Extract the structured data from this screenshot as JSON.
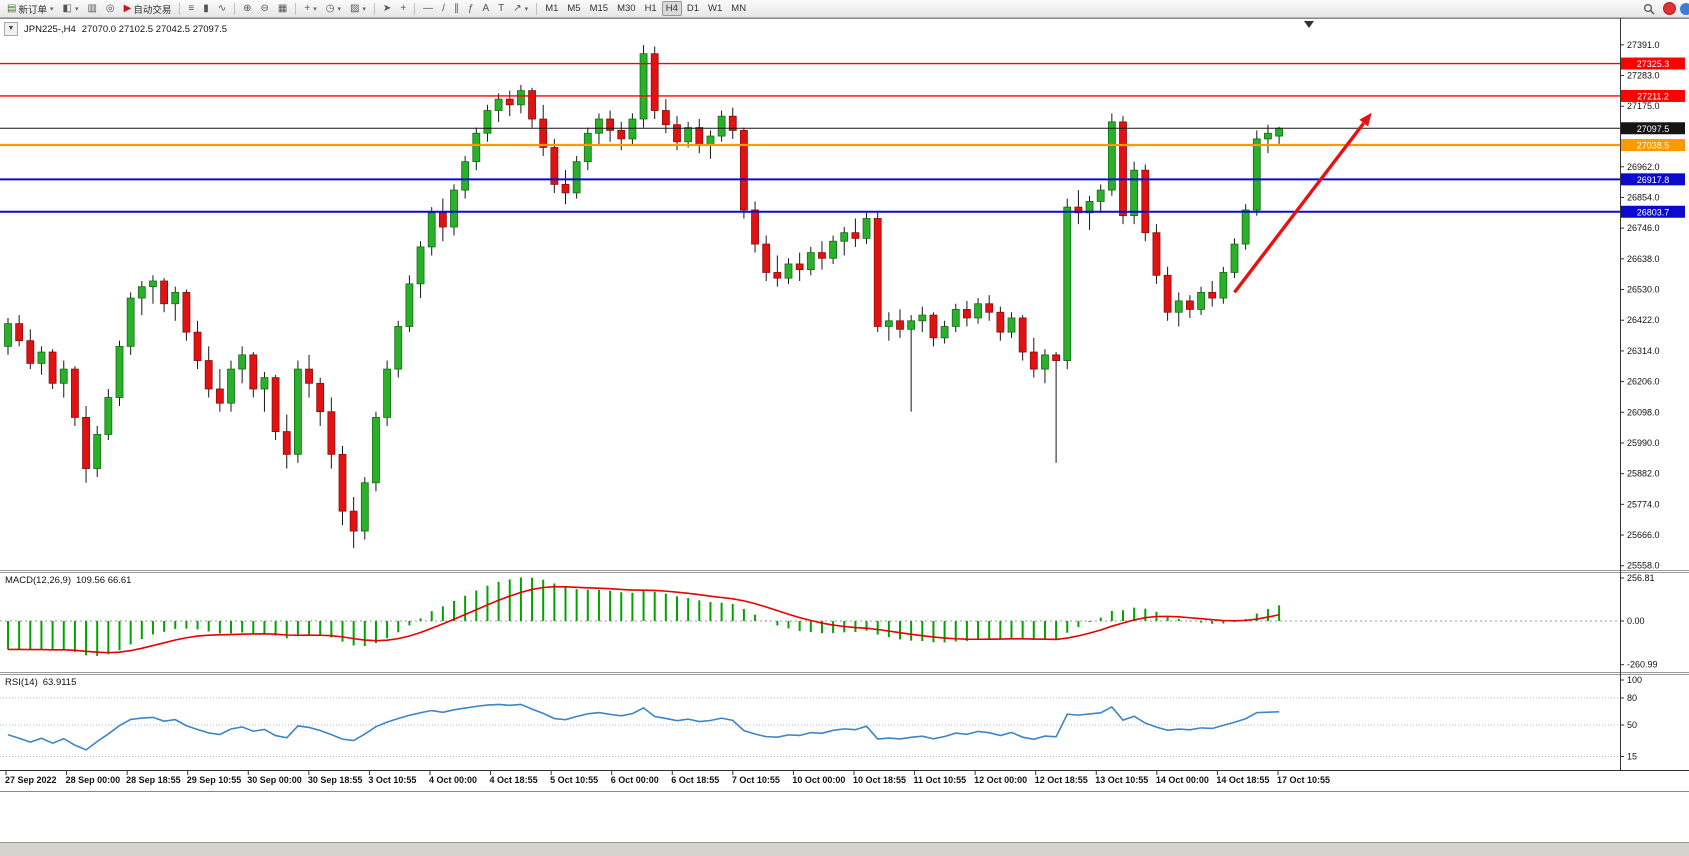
{
  "toolbar": {
    "new_order_label": "新订单",
    "autotrading_label": "自动交易",
    "timeframes": [
      "M1",
      "M5",
      "M15",
      "M30",
      "H1",
      "H4",
      "D1",
      "W1",
      "MN"
    ],
    "active_timeframe": "H4",
    "buttons": [
      {
        "name": "new-order",
        "label": "新订单",
        "glyph": "▤",
        "glyph_color": "#4a7a2a",
        "dropdown": true
      },
      {
        "name": "new-chart",
        "glyph": "◧",
        "dropdown": true
      },
      {
        "name": "profiles",
        "glyph": "▥"
      },
      {
        "name": "alerts",
        "glyph": "◎"
      },
      {
        "name": "autotrading",
        "label": "自动交易",
        "glyph": "▶",
        "glyph_color": "#cc1111"
      },
      {
        "type": "sep"
      },
      {
        "name": "bars-chart",
        "glyph": "≡"
      },
      {
        "name": "candles-chart",
        "glyph": "▮"
      },
      {
        "name": "line-chart",
        "glyph": "∿"
      },
      {
        "type": "sep"
      },
      {
        "name": "zoom-in",
        "glyph": "⊕"
      },
      {
        "name": "zoom-out",
        "glyph": "⊖"
      },
      {
        "name": "tile-windows",
        "glyph": "▦"
      },
      {
        "type": "sep"
      },
      {
        "name": "indicators",
        "glyph": "+",
        "glyph_color": "#1a8a1a",
        "dropdown": true
      },
      {
        "name": "periods",
        "glyph": "◷",
        "dropdown": true
      },
      {
        "name": "templates",
        "glyph": "▨",
        "dropdown": true
      },
      {
        "type": "sep"
      },
      {
        "name": "cursor",
        "glyph": "➤"
      },
      {
        "name": "crosshair",
        "glyph": "+"
      },
      {
        "type": "sep"
      },
      {
        "name": "hline",
        "glyph": "—"
      },
      {
        "name": "trendline",
        "glyph": "/"
      },
      {
        "name": "channel",
        "glyph": "∥"
      },
      {
        "name": "fibonacci",
        "glyph": "ƒ"
      },
      {
        "name": "text",
        "glyph": "A"
      },
      {
        "name": "label",
        "glyph": "T"
      },
      {
        "name": "arrows",
        "glyph": "↗",
        "dropdown": true
      },
      {
        "type": "sep"
      }
    ]
  },
  "chart": {
    "symbol_tf": "JPN225-,H4",
    "ohlc_text": "27070.0 27102.5 27042.5 27097.5",
    "expander_glyph": "▼"
  },
  "chart_data": {
    "type": "candlestick",
    "symbol": "JPN225-",
    "timeframe": "H4",
    "current_ohlc": {
      "open": 27070.0,
      "high": 27102.5,
      "low": 27042.5,
      "close": 27097.5
    },
    "y_range": [
      25543,
      27482
    ],
    "price_ticks": [
      27391,
      27283,
      27175,
      26962,
      26854,
      26746,
      26638,
      26530,
      26422,
      26314,
      26206,
      26098,
      25990,
      25882,
      25774,
      25666,
      25558
    ],
    "colors": {
      "up": "#29b129",
      "up_border": "#166b16",
      "down": "#e31212",
      "down_border": "#8c0d0d",
      "wick": "#161616"
    },
    "levels": [
      {
        "price": 27325.3,
        "label": "27325.3",
        "color": "#ff0000",
        "width": 1.4
      },
      {
        "price": 27211.2,
        "label": "27211.2",
        "color": "#ff0000",
        "width": 1.4
      },
      {
        "price": 27097.5,
        "label": "27097.5",
        "color": "#151515",
        "width": 1
      },
      {
        "price": 27038.5,
        "label": "27038.5",
        "color": "#ff9900",
        "width": 2.2
      },
      {
        "price": 26917.8,
        "label": "26917.8",
        "color": "#0b0bd0",
        "width": 2
      },
      {
        "price": 26803.7,
        "label": "26803.7",
        "color": "#0b0bd0",
        "width": 2
      }
    ],
    "trend_arrow": {
      "from": {
        "bar": 110,
        "price": 26520
      },
      "to": {
        "bar": 122.3,
        "price": 27152
      },
      "color": "#e81111"
    },
    "x_labels": [
      "27 Sep 2022",
      "28 Sep 00:00",
      "28 Sep 18:55",
      "29 Sep 10:55",
      "30 Sep 00:00",
      "30 Sep 18:55",
      "3 Oct 10:55",
      "4 Oct 00:00",
      "4 Oct 18:55",
      "5 Oct 10:55",
      "6 Oct 00:00",
      "6 Oct 18:55",
      "7 Oct 10:55",
      "10 Oct 00:00",
      "10 Oct 18:55",
      "11 Oct 10:55",
      "12 Oct 00:00",
      "12 Oct 18:55",
      "13 Oct 10:55",
      "14 Oct 00:00",
      "14 Oct 18:55",
      "17 Oct 10:55"
    ],
    "candles": [
      [
        26330,
        26430,
        26300,
        26410
      ],
      [
        26410,
        26440,
        26330,
        26350
      ],
      [
        26350,
        26390,
        26250,
        26270
      ],
      [
        26270,
        26330,
        26230,
        26310
      ],
      [
        26310,
        26320,
        26180,
        26200
      ],
      [
        26200,
        26280,
        26150,
        26250
      ],
      [
        26250,
        26260,
        26050,
        26080
      ],
      [
        26080,
        26120,
        25850,
        25900
      ],
      [
        25900,
        26050,
        25870,
        26020
      ],
      [
        26020,
        26180,
        26000,
        26150
      ],
      [
        26150,
        26350,
        26120,
        26330
      ],
      [
        26330,
        26520,
        26300,
        26500
      ],
      [
        26500,
        26560,
        26440,
        26540
      ],
      [
        26540,
        26580,
        26480,
        26560
      ],
      [
        26560,
        26570,
        26450,
        26480
      ],
      [
        26480,
        26540,
        26420,
        26520
      ],
      [
        26520,
        26530,
        26350,
        26380
      ],
      [
        26380,
        26420,
        26250,
        26280
      ],
      [
        26280,
        26330,
        26150,
        26180
      ],
      [
        26180,
        26250,
        26100,
        26130
      ],
      [
        26130,
        26280,
        26100,
        26250
      ],
      [
        26250,
        26330,
        26200,
        26300
      ],
      [
        26300,
        26310,
        26150,
        26180
      ],
      [
        26180,
        26240,
        26100,
        26220
      ],
      [
        26220,
        26230,
        26000,
        26030
      ],
      [
        26030,
        26090,
        25900,
        25950
      ],
      [
        25950,
        26280,
        25920,
        26250
      ],
      [
        26250,
        26300,
        26150,
        26200
      ],
      [
        26200,
        26220,
        26050,
        26100
      ],
      [
        26100,
        26150,
        25900,
        25950
      ],
      [
        25950,
        25980,
        25700,
        25750
      ],
      [
        25750,
        25800,
        25620,
        25680
      ],
      [
        25680,
        25870,
        25650,
        25850
      ],
      [
        25850,
        26100,
        25820,
        26080
      ],
      [
        26080,
        26280,
        26050,
        26250
      ],
      [
        26250,
        26420,
        26220,
        26400
      ],
      [
        26400,
        26580,
        26380,
        26550
      ],
      [
        26550,
        26700,
        26500,
        26680
      ],
      [
        26680,
        26820,
        26650,
        26800
      ],
      [
        26800,
        26850,
        26700,
        26750
      ],
      [
        26750,
        26900,
        26720,
        26880
      ],
      [
        26880,
        27000,
        26850,
        26980
      ],
      [
        26980,
        27100,
        26950,
        27080
      ],
      [
        27080,
        27180,
        27050,
        27160
      ],
      [
        27160,
        27220,
        27120,
        27200
      ],
      [
        27200,
        27230,
        27140,
        27180
      ],
      [
        27180,
        27250,
        27150,
        27230
      ],
      [
        27230,
        27240,
        27100,
        27130
      ],
      [
        27130,
        27180,
        27000,
        27030
      ],
      [
        27030,
        27060,
        26870,
        26900
      ],
      [
        26900,
        26950,
        26830,
        26870
      ],
      [
        26870,
        27000,
        26850,
        26980
      ],
      [
        26980,
        27100,
        26950,
        27080
      ],
      [
        27080,
        27150,
        27040,
        27130
      ],
      [
        27130,
        27160,
        27050,
        27090
      ],
      [
        27090,
        27120,
        27020,
        27060
      ],
      [
        27060,
        27150,
        27040,
        27130
      ],
      [
        27130,
        27390,
        27100,
        27360
      ],
      [
        27360,
        27385,
        27130,
        27160
      ],
      [
        27160,
        27200,
        27080,
        27110
      ],
      [
        27110,
        27140,
        27020,
        27050
      ],
      [
        27050,
        27120,
        27030,
        27100
      ],
      [
        27100,
        27130,
        27010,
        27040
      ],
      [
        27040,
        27090,
        26990,
        27070
      ],
      [
        27070,
        27160,
        27050,
        27140
      ],
      [
        27140,
        27170,
        27060,
        27090
      ],
      [
        27090,
        27100,
        26780,
        26810
      ],
      [
        26810,
        26840,
        26660,
        26690
      ],
      [
        26690,
        26720,
        26560,
        26590
      ],
      [
        26590,
        26650,
        26540,
        26570
      ],
      [
        26570,
        26640,
        26550,
        26620
      ],
      [
        26620,
        26660,
        26560,
        26600
      ],
      [
        26600,
        26680,
        26580,
        26660
      ],
      [
        26660,
        26700,
        26600,
        26640
      ],
      [
        26640,
        26720,
        26620,
        26700
      ],
      [
        26700,
        26750,
        26650,
        26730
      ],
      [
        26730,
        26780,
        26680,
        26710
      ],
      [
        26710,
        26800,
        26690,
        26780
      ],
      [
        26780,
        26800,
        26380,
        26400
      ],
      [
        26400,
        26450,
        26350,
        26420
      ],
      [
        26420,
        26460,
        26360,
        26390
      ],
      [
        26390,
        26440,
        26100,
        26420
      ],
      [
        26420,
        26470,
        26380,
        26440
      ],
      [
        26440,
        26450,
        26330,
        26360
      ],
      [
        26360,
        26420,
        26340,
        26400
      ],
      [
        26400,
        26480,
        26380,
        26460
      ],
      [
        26460,
        26490,
        26400,
        26430
      ],
      [
        26430,
        26500,
        26410,
        26480
      ],
      [
        26480,
        26510,
        26420,
        26450
      ],
      [
        26450,
        26470,
        26350,
        26380
      ],
      [
        26380,
        26450,
        26360,
        26430
      ],
      [
        26430,
        26440,
        26280,
        26310
      ],
      [
        26310,
        26360,
        26220,
        26250
      ],
      [
        26250,
        26320,
        26200,
        26300
      ],
      [
        26300,
        26310,
        25920,
        26280
      ],
      [
        26280,
        26850,
        26250,
        26820
      ],
      [
        26820,
        26880,
        26760,
        26800
      ],
      [
        26800,
        26860,
        26740,
        26840
      ],
      [
        26840,
        26900,
        26800,
        26880
      ],
      [
        26880,
        27150,
        26860,
        27120
      ],
      [
        27120,
        27140,
        26760,
        26790
      ],
      [
        26790,
        26980,
        26760,
        26950
      ],
      [
        26950,
        26970,
        26700,
        26730
      ],
      [
        26730,
        26760,
        26550,
        26580
      ],
      [
        26580,
        26610,
        26420,
        26450
      ],
      [
        26450,
        26520,
        26400,
        26490
      ],
      [
        26490,
        26510,
        26430,
        26460
      ],
      [
        26460,
        26540,
        26440,
        26520
      ],
      [
        26520,
        26560,
        26470,
        26500
      ],
      [
        26500,
        26610,
        26480,
        26590
      ],
      [
        26590,
        26710,
        26570,
        26690
      ],
      [
        26690,
        26830,
        26670,
        26810
      ],
      [
        26810,
        27090,
        26790,
        27060
      ],
      [
        27060,
        27110,
        27010,
        27080
      ],
      [
        27070,
        27102.5,
        27042.5,
        27097.5
      ]
    ],
    "indicators": [
      {
        "name": "MACD",
        "label": "MACD(12,26,9)",
        "values_text": "109.56 66.61",
        "axis_tick_labels": [
          "256.81",
          "0.00",
          "-260.99"
        ],
        "axis_tick_values": [
          256.81,
          0,
          -260.99
        ],
        "histogram_color": "#00a300",
        "signal_color": "#e60000"
      },
      {
        "name": "RSI",
        "label": "RSI(14)",
        "values_text": "63.9115",
        "axis_tick_labels": [
          "100",
          "80",
          "50",
          "15"
        ],
        "axis_tick_values": [
          100,
          80,
          50,
          15
        ],
        "levels": [
          80,
          50,
          15
        ],
        "color": "#3d85c6"
      }
    ]
  }
}
